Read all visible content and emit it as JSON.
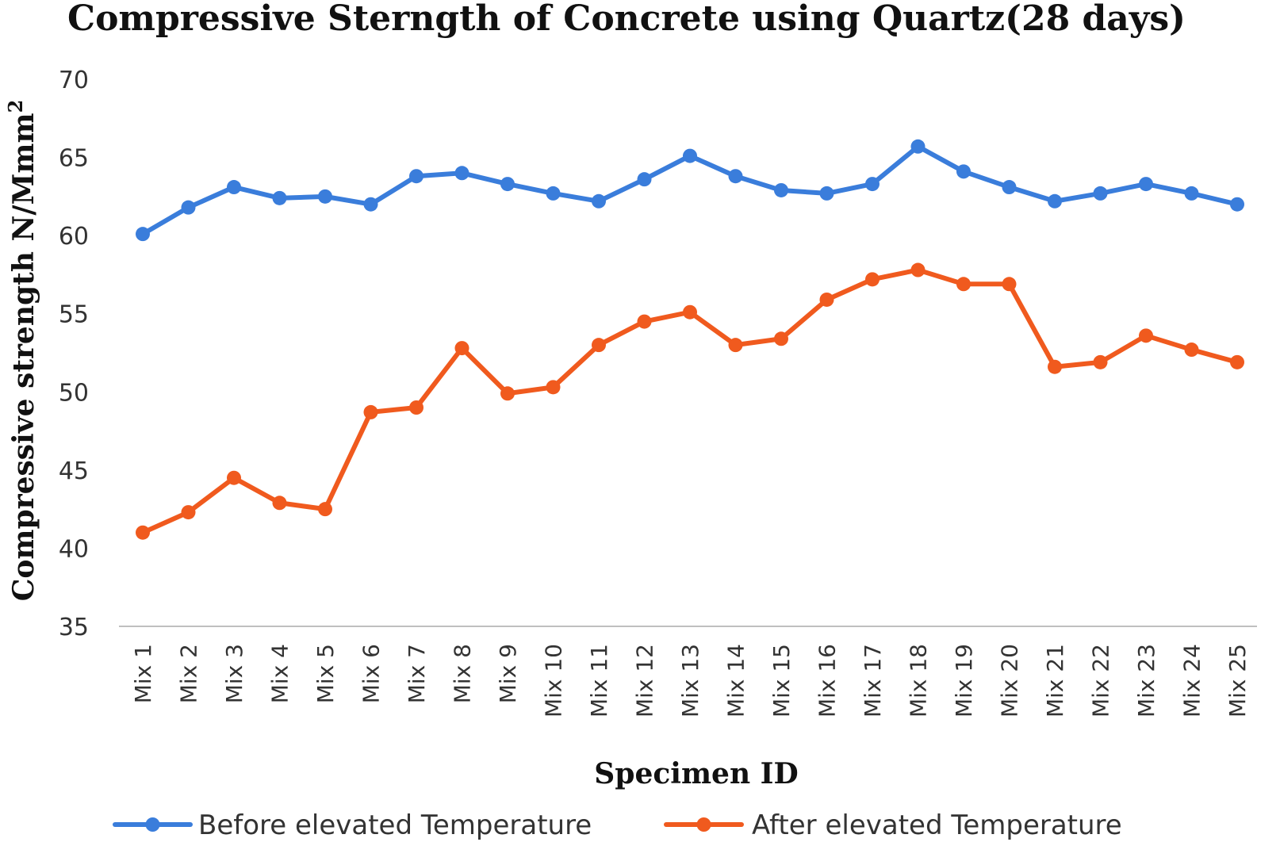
{
  "chart_data": {
    "type": "line",
    "title": "Compressive Sterngth of Concrete using Quartz(28 days)",
    "xlabel": "Specimen ID",
    "ylabel": "Compressive  strength N/Mmm",
    "ylabel_superscript": "2",
    "ylim": [
      35,
      70
    ],
    "yticks": [
      35,
      40,
      45,
      50,
      55,
      60,
      65,
      70
    ],
    "grid": false,
    "legend_position": "bottom",
    "categories": [
      "Mix 1",
      "Mix 2",
      "Mix 3",
      "Mix 4",
      "Mix 5",
      "Mix 6",
      "Mix 7",
      "Mix 8",
      "Mix 9",
      "Mix 10",
      "Mix 11",
      "Mix 12",
      "Mix 13",
      "Mix 14",
      "Mix 15",
      "Mix 16",
      "Mix 17",
      "Mix 18",
      "Mix 19",
      "Mix 20",
      "Mix 21",
      "Mix 22",
      "Mix 23",
      "Mix 24",
      "Mix 25"
    ],
    "series": [
      {
        "name": "Before elevated Temperature",
        "color": "#3A7DDB",
        "values": [
          60.1,
          61.8,
          63.1,
          62.4,
          62.5,
          62.0,
          63.8,
          64.0,
          63.3,
          62.7,
          62.2,
          63.6,
          65.1,
          63.8,
          62.9,
          62.7,
          63.3,
          65.7,
          64.1,
          63.1,
          62.2,
          62.7,
          63.3,
          62.7,
          62.0
        ]
      },
      {
        "name": "After elevated Temperature",
        "color": "#F05A1E",
        "values": [
          41.0,
          42.3,
          44.5,
          42.9,
          42.5,
          48.7,
          49.0,
          52.8,
          49.9,
          50.3,
          53.0,
          54.5,
          55.1,
          53.0,
          53.4,
          55.9,
          57.2,
          57.8,
          56.9,
          56.9,
          51.6,
          51.9,
          53.6,
          52.7,
          51.9
        ]
      }
    ]
  }
}
